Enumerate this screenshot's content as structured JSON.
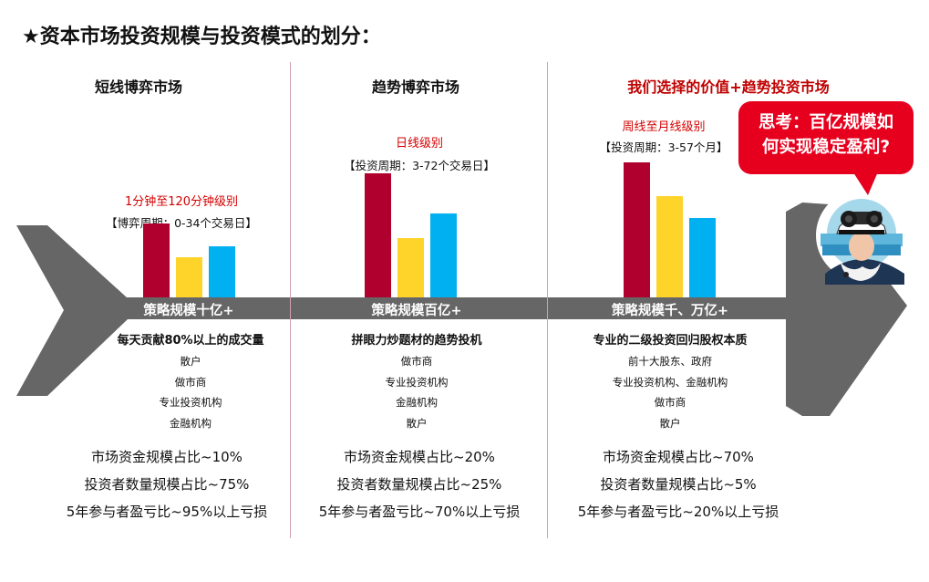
{
  "title": "★资本市场投资规模与投资模式的划分：",
  "bubble": {
    "line1": "思考：百亿规模如",
    "line2": "何实现稳定盈利?"
  },
  "colors": {
    "bar_red": "#b0002d",
    "bar_yellow": "#ffd42a",
    "bar_blue": "#00b0f0",
    "spine": "#666666",
    "accent_red": "#c00000"
  },
  "columns": [
    {
      "heading": "短线博弈市场",
      "level": "1分钟至120分钟级别",
      "period": "【博弈周期：0-34个交易日】",
      "bars": [
        0.55,
        0.3,
        0.38
      ],
      "spine_label": "策略规模十亿+",
      "desc_title": "每天贡献80%以上的成交量",
      "participants": [
        "散户",
        "做市商",
        "专业投资机构",
        "金融机构"
      ],
      "stats": [
        "市场资金规模占比~10%",
        "投资者数量规模占比~75%",
        "5年参与者盈亏比~95%以上亏损"
      ]
    },
    {
      "heading": "趋势博弈市场",
      "level": "日线级别",
      "period": "【投资周期：3-72个交易日】",
      "bars": [
        0.92,
        0.44,
        0.62
      ],
      "spine_label": "策略规模百亿+",
      "desc_title": "拼眼力炒题材的趋势投机",
      "participants": [
        "做市商",
        "专业投资机构",
        "金融机构",
        "散户"
      ],
      "stats": [
        "市场资金规模占比~20%",
        "投资者数量规模占比~25%",
        "5年参与者盈亏比~70%以上亏损"
      ]
    },
    {
      "heading": "我们选择的价值+趋势投资市场",
      "level": "周线至月线级别",
      "period": "【投资周期：3-57个月】",
      "bars": [
        1.0,
        0.75,
        0.59
      ],
      "spine_label": "策略规模千、万亿+",
      "desc_title": "专业的二级投资回归股权本质",
      "participants": [
        "前十大股东、政府",
        "专业投资机构、金融机构",
        "做市商",
        "散户"
      ],
      "stats": [
        "市场资金规模占比~70%",
        "投资者数量规模占比~5%",
        "5年参与者盈亏比~20%以上亏损"
      ]
    }
  ]
}
